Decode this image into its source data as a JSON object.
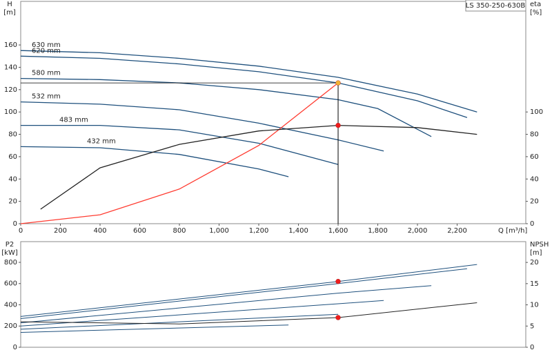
{
  "chart_data": [
    {
      "type": "line",
      "title": "LS 350-250-630B",
      "x_label": "Q [m³/h]",
      "y_label": "H",
      "y_unit": "[m]",
      "y2_label": "eta",
      "y2_unit": "[%]",
      "xlim": [
        0,
        2546
      ],
      "xticks": [
        0,
        200,
        400,
        600,
        800,
        {
          "value": 1000,
          "label": "1,000"
        },
        {
          "value": 1200,
          "label": "1,200"
        },
        {
          "value": 1400,
          "label": "1,400"
        },
        {
          "value": 1600,
          "label": "1,600"
        },
        {
          "value": 1800,
          "label": "1,800"
        },
        {
          "value": 2000,
          "label": "2,000"
        },
        {
          "value": 2200,
          "label": "2,200"
        }
      ],
      "ylim": [
        0,
        199
      ],
      "yticks": [
        0,
        20,
        40,
        60,
        80,
        100,
        120,
        140,
        160
      ],
      "y2lim": [
        0,
        199
      ],
      "y2ticks": [
        0,
        20,
        40,
        60,
        80,
        100
      ],
      "series": [
        {
          "name": "630 mm",
          "color": "#1d4f7c",
          "x": [
            0,
            400,
            800,
            1200,
            1600,
            2000,
            2300
          ],
          "values": [
            155,
            153,
            148,
            141,
            131,
            116,
            100
          ]
        },
        {
          "name": "620 mm",
          "color": "#1d4f7c",
          "x": [
            0,
            400,
            800,
            1200,
            1600,
            2000,
            2250
          ],
          "values": [
            150,
            148,
            143,
            136,
            126,
            110,
            95
          ]
        },
        {
          "name": "580 mm",
          "color": "#1d4f7c",
          "x": [
            0,
            400,
            800,
            1200,
            1600,
            1800,
            2070
          ],
          "values": [
            130,
            129,
            126,
            120,
            111,
            103,
            78
          ]
        },
        {
          "name": "532 mm",
          "color": "#1d4f7c",
          "x": [
            0,
            400,
            800,
            1200,
            1600,
            1830
          ],
          "values": [
            109,
            107,
            102,
            90,
            75,
            65
          ]
        },
        {
          "name": "483 mm",
          "color": "#1d4f7c",
          "x": [
            0,
            400,
            800,
            1200,
            1600
          ],
          "values": [
            88,
            88,
            84,
            72,
            53
          ]
        },
        {
          "name": "432 mm",
          "color": "#1d4f7c",
          "x": [
            0,
            400,
            800,
            1200,
            1350
          ],
          "values": [
            69,
            68,
            62,
            49,
            42
          ]
        },
        {
          "color": "#ff3b30",
          "x": [
            0,
            400,
            800,
            1200,
            1600
          ],
          "values": [
            0,
            8,
            31,
            70,
            126
          ]
        },
        {
          "color": "#222222",
          "axis": "y2",
          "x": [
            100,
            400,
            800,
            1200,
            1600,
            2000,
            2300
          ],
          "values": [
            13,
            50,
            71,
            83,
            88,
            86,
            80
          ]
        },
        {
          "color": "#f2b233",
          "marker": true,
          "x": [
            1600
          ],
          "values": [
            126
          ]
        },
        {
          "color": "#ee1c1c",
          "marker": true,
          "axis": "y2",
          "x": [
            1600
          ],
          "values": [
            88
          ]
        }
      ]
    },
    {
      "type": "line",
      "y_label": "P2",
      "y_unit": "[kW]",
      "y2_label": "NPSH",
      "y2_unit": "[m]",
      "xlim": [
        0,
        2546
      ],
      "ylim": [
        0,
        995
      ],
      "yticks": [
        0,
        200,
        400,
        600,
        800
      ],
      "y2lim": [
        0,
        24.9
      ],
      "y2ticks": [
        0,
        5,
        10,
        15,
        20
      ],
      "series": [
        {
          "color": "#1d4f7c",
          "x": [
            0,
            1600,
            2300
          ],
          "values": [
            290,
            620,
            780
          ]
        },
        {
          "color": "#1d4f7c",
          "x": [
            0,
            1600,
            2250
          ],
          "values": [
            270,
            600,
            740
          ]
        },
        {
          "color": "#1d4f7c",
          "x": [
            0,
            1600,
            2070
          ],
          "values": [
            230,
            510,
            580
          ]
        },
        {
          "color": "#1d4f7c",
          "x": [
            0,
            1600,
            1830
          ],
          "values": [
            200,
            410,
            440
          ]
        },
        {
          "color": "#1d4f7c",
          "x": [
            0,
            1600
          ],
          "values": [
            170,
            310
          ]
        },
        {
          "color": "#1d4f7c",
          "x": [
            0,
            1350
          ],
          "values": [
            140,
            210
          ]
        },
        {
          "color": "#222222",
          "axis": "y2",
          "x": [
            0,
            800,
            1600,
            2300
          ],
          "values": [
            6,
            5.5,
            7,
            10.5
          ]
        },
        {
          "color": "#ee1c1c",
          "marker": true,
          "x": [
            1600
          ],
          "values": [
            620
          ]
        },
        {
          "color": "#ee1c1c",
          "marker": true,
          "axis": "y2",
          "x": [
            1600
          ],
          "values": [
            7
          ]
        }
      ]
    }
  ]
}
